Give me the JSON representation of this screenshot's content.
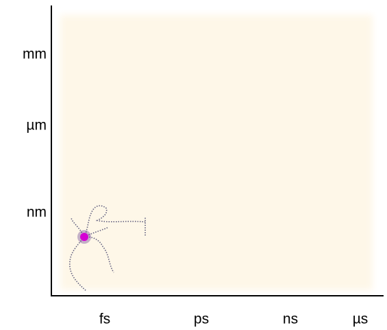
{
  "x_axis": {
    "ticks": [
      "fs",
      "ps",
      "ns",
      "µs"
    ]
  },
  "y_axis": {
    "ticks": [
      "mm",
      "µm",
      "nm"
    ]
  }
}
